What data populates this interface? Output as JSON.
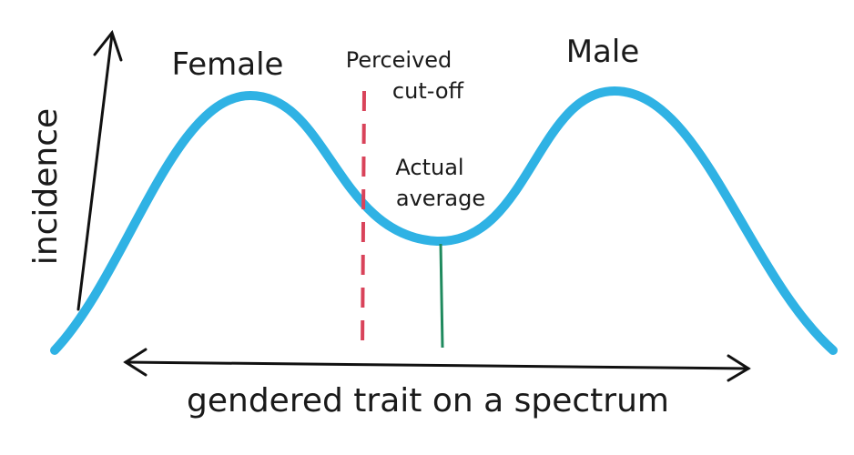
{
  "y_axis": {
    "label": "incidence"
  },
  "x_axis": {
    "label": "gendered trait on a spectrum"
  },
  "peaks": [
    {
      "label": "Female"
    },
    {
      "label": "Male"
    }
  ],
  "markers": [
    {
      "label_lines": [
        "Perceived",
        "cut-off"
      ]
    },
    {
      "label_lines": [
        "Actual",
        "average"
      ]
    }
  ]
}
